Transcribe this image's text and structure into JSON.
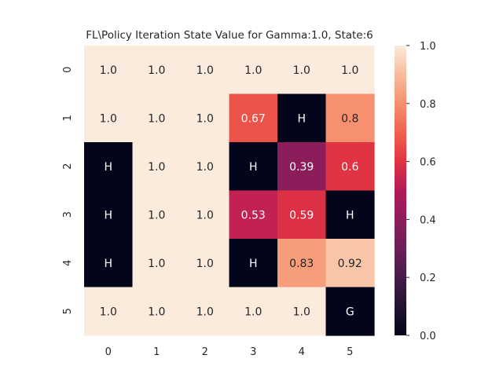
{
  "chart_data": {
    "type": "heatmap",
    "title": "FL\\Policy Iteration State Value for Gamma:1.0, State:6",
    "xlabel": "",
    "ylabel": "",
    "x_categories": [
      "0",
      "1",
      "2",
      "3",
      "4",
      "5"
    ],
    "y_categories": [
      "0",
      "1",
      "2",
      "3",
      "4",
      "5"
    ],
    "values": [
      [
        1.0,
        1.0,
        1.0,
        1.0,
        1.0,
        1.0
      ],
      [
        1.0,
        1.0,
        1.0,
        0.67,
        0.0,
        0.8
      ],
      [
        0.0,
        1.0,
        1.0,
        0.0,
        0.39,
        0.6
      ],
      [
        0.0,
        1.0,
        1.0,
        0.53,
        0.59,
        0.0
      ],
      [
        0.0,
        1.0,
        1.0,
        0.0,
        0.83,
        0.92
      ],
      [
        1.0,
        1.0,
        1.0,
        1.0,
        1.0,
        0.0
      ]
    ],
    "annotations": [
      [
        "1.0",
        "1.0",
        "1.0",
        "1.0",
        "1.0",
        "1.0"
      ],
      [
        "1.0",
        "1.0",
        "1.0",
        "0.67",
        "H",
        "0.8"
      ],
      [
        "H",
        "1.0",
        "1.0",
        "H",
        "0.39",
        "0.6"
      ],
      [
        "H",
        "1.0",
        "1.0",
        "0.53",
        "0.59",
        "H"
      ],
      [
        "H",
        "1.0",
        "1.0",
        "H",
        "0.83",
        "0.92"
      ],
      [
        "1.0",
        "1.0",
        "1.0",
        "1.0",
        "1.0",
        "G"
      ]
    ],
    "colorbar": {
      "ticks": [
        "0.0",
        "0.2",
        "0.4",
        "0.6",
        "0.8",
        "1.0"
      ],
      "range": [
        0.0,
        1.0
      ],
      "colormap": "rocket"
    },
    "grid": false,
    "legend": "colorbar-right"
  }
}
